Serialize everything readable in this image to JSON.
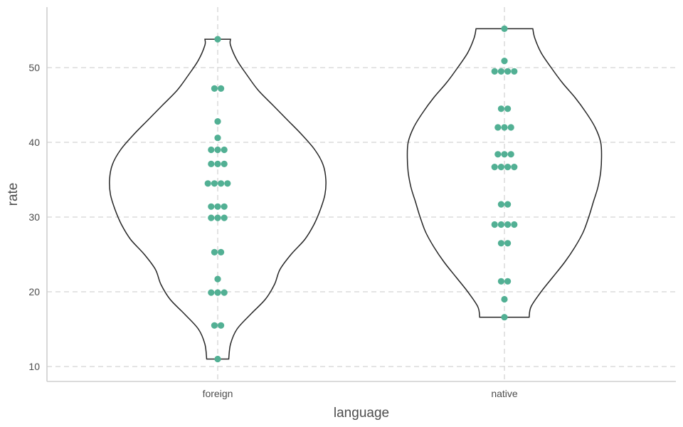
{
  "chart_data": {
    "type": "violin",
    "xlabel": "language",
    "ylabel": "rate",
    "categories": [
      "foreign",
      "native"
    ],
    "ylim": [
      8,
      58
    ],
    "yticks": [
      10,
      20,
      30,
      40,
      50
    ],
    "grid": true,
    "grid_style": "dashed",
    "colors": {
      "points": "#52b094",
      "outline": "#262626",
      "grid": "#d4d4d4",
      "axis": "#cfcfcf"
    },
    "violins": [
      {
        "category": "foreign",
        "min": 11.0,
        "max": 53.8,
        "density_profile": [
          [
            11.0,
            0.12
          ],
          [
            13,
            0.14
          ],
          [
            15,
            0.21
          ],
          [
            17,
            0.36
          ],
          [
            19,
            0.52
          ],
          [
            21,
            0.62
          ],
          [
            23,
            0.68
          ],
          [
            25,
            0.8
          ],
          [
            27,
            0.95
          ],
          [
            29,
            1.05
          ],
          [
            31,
            1.12
          ],
          [
            33,
            1.17
          ],
          [
            35,
            1.18
          ],
          [
            37,
            1.15
          ],
          [
            39,
            1.06
          ],
          [
            41,
            0.92
          ],
          [
            43,
            0.76
          ],
          [
            45,
            0.6
          ],
          [
            47,
            0.44
          ],
          [
            49,
            0.32
          ],
          [
            51,
            0.21
          ],
          [
            53,
            0.14
          ],
          [
            53.8,
            0.14
          ]
        ]
      },
      {
        "category": "native",
        "min": 16.6,
        "max": 55.2,
        "density_profile": [
          [
            16.6,
            0.27
          ],
          [
            18,
            0.29
          ],
          [
            20,
            0.4
          ],
          [
            22,
            0.53
          ],
          [
            24,
            0.66
          ],
          [
            26,
            0.77
          ],
          [
            28,
            0.86
          ],
          [
            30,
            0.92
          ],
          [
            32,
            0.97
          ],
          [
            34,
            1.02
          ],
          [
            36,
            1.05
          ],
          [
            38,
            1.06
          ],
          [
            40,
            1.05
          ],
          [
            42,
            0.99
          ],
          [
            44,
            0.89
          ],
          [
            46,
            0.77
          ],
          [
            48,
            0.63
          ],
          [
            50,
            0.51
          ],
          [
            52,
            0.4
          ],
          [
            54,
            0.33
          ],
          [
            55.2,
            0.31
          ]
        ]
      }
    ],
    "points": [
      {
        "category": "foreign",
        "values": [
          11.0,
          15.5,
          15.5,
          19.9,
          19.9,
          19.9,
          21.7,
          25.3,
          25.3,
          29.9,
          29.9,
          29.9,
          31.4,
          31.4,
          31.4,
          34.5,
          34.5,
          34.5,
          34.5,
          37.1,
          37.1,
          37.1,
          39.0,
          39.0,
          39.0,
          40.6,
          42.8,
          47.2,
          47.2,
          53.8
        ]
      },
      {
        "category": "native",
        "values": [
          16.6,
          19.0,
          21.4,
          21.4,
          26.5,
          26.5,
          29.0,
          29.0,
          29.0,
          29.0,
          31.7,
          31.7,
          36.7,
          36.7,
          36.7,
          36.7,
          38.4,
          38.4,
          38.4,
          42.0,
          42.0,
          42.0,
          44.5,
          44.5,
          49.5,
          49.5,
          49.5,
          49.5,
          50.9,
          55.2
        ]
      }
    ]
  }
}
